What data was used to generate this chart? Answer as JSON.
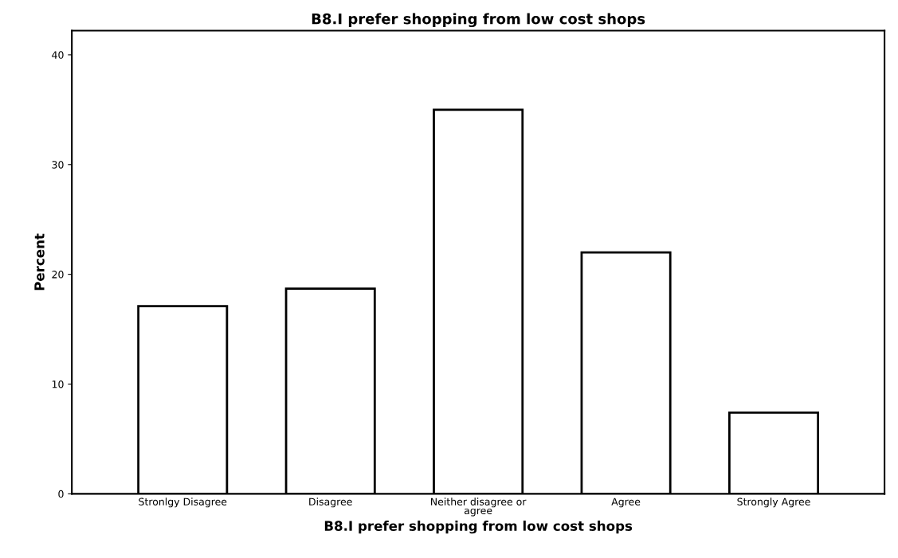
{
  "chart_data": {
    "type": "bar",
    "title": "B8.I prefer shopping from low cost shops",
    "xlabel": "B8.I prefer shopping from low cost shops",
    "ylabel": "Percent",
    "categories": [
      "Stronlgy Disagree",
      "Disagree",
      "Neither disagree or\nagree",
      "Agree",
      "Strongly Agree"
    ],
    "values": [
      17.1,
      18.7,
      35.0,
      22.0,
      7.4
    ],
    "color": "#ffffff",
    "ylim": [
      0,
      42.2
    ],
    "yticks": [
      0,
      10,
      20,
      30,
      40
    ],
    "grid": false,
    "legend": false
  }
}
